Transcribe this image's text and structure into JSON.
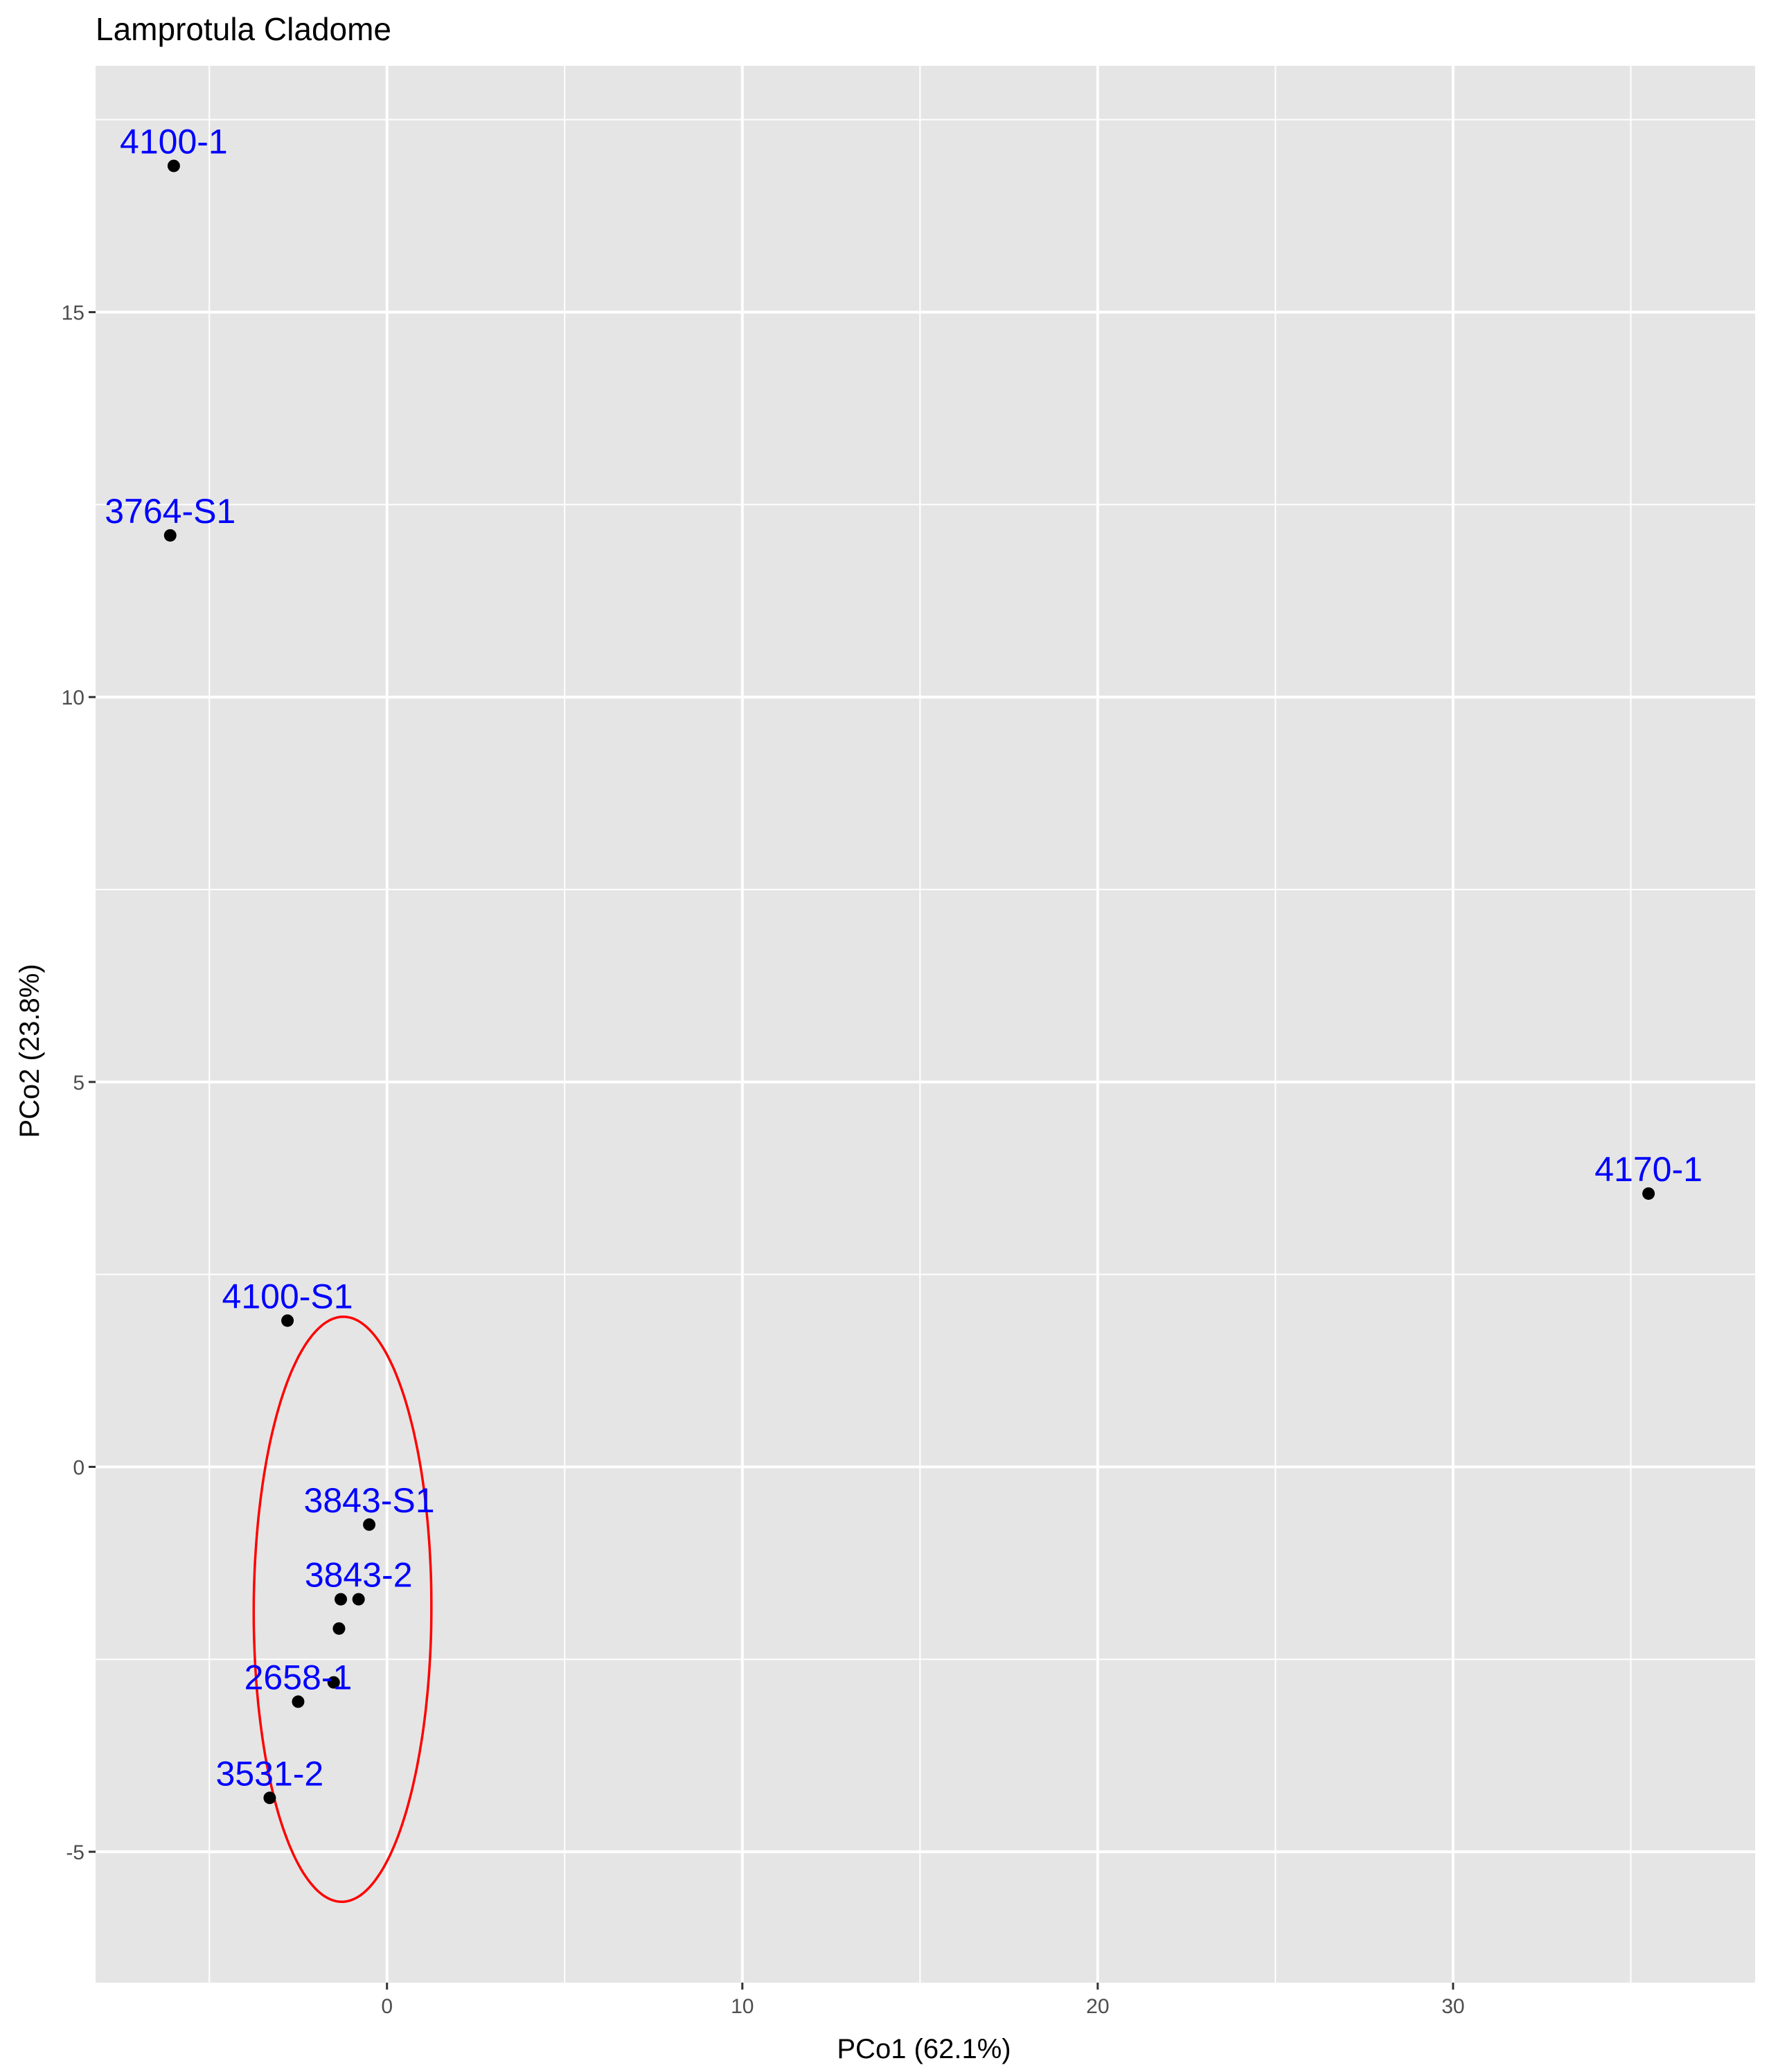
{
  "chart_data": {
    "type": "scatter",
    "title": "Lamprotula Cladome",
    "xlabel": "PCo1 (62.1%)",
    "ylabel": "PCo2 (23.8%)",
    "xlim": [
      -8.2,
      38.5
    ],
    "ylim": [
      -6.7,
      18.2
    ],
    "x_ticks": [
      0,
      10,
      20,
      30
    ],
    "y_ticks": [
      -5,
      0,
      5,
      10,
      15
    ],
    "x_tick_labels": [
      "0",
      "10",
      "20",
      "30"
    ],
    "y_tick_labels": [
      "-5",
      "0",
      "5",
      "10",
      "15"
    ],
    "grid": true,
    "background_color": "#e5e5e5",
    "grid_color": "#ffffff",
    "point_color": "#000000",
    "label_color": "#0000ff",
    "ellipse_color": "#ff0000",
    "points": [
      {
        "x": -6.0,
        "y": 16.9,
        "label": "4100-1"
      },
      {
        "x": -6.1,
        "y": 12.1,
        "label": "3764-S1"
      },
      {
        "x": 35.5,
        "y": 3.55,
        "label": "4170-1"
      },
      {
        "x": -2.8,
        "y": 1.9,
        "label": "4100-S1"
      },
      {
        "x": -0.5,
        "y": -0.75,
        "label": "3843-S1"
      },
      {
        "x": -0.8,
        "y": -1.72,
        "label": "3843-2"
      },
      {
        "x": -1.3,
        "y": -1.72,
        "label": ""
      },
      {
        "x": -1.35,
        "y": -2.1,
        "label": ""
      },
      {
        "x": -1.5,
        "y": -2.8,
        "label": ""
      },
      {
        "x": -2.5,
        "y": -3.05,
        "label": "2658-1"
      },
      {
        "x": -3.3,
        "y": -4.3,
        "label": "3531-2"
      }
    ],
    "ellipse": {
      "cx": -1.25,
      "cy": -1.85,
      "rx": 2.5,
      "ry": 3.8,
      "angle": -0.6
    }
  }
}
